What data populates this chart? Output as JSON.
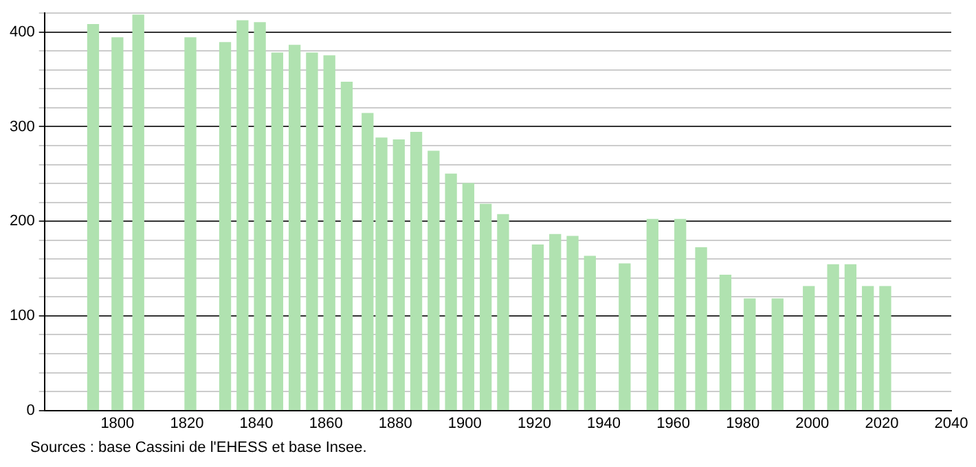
{
  "chart_data": {
    "type": "bar",
    "x": [
      1793,
      1800,
      1806,
      1821,
      1831,
      1836,
      1841,
      1846,
      1851,
      1856,
      1861,
      1866,
      1872,
      1876,
      1881,
      1886,
      1891,
      1896,
      1901,
      1906,
      1911,
      1921,
      1926,
      1931,
      1936,
      1946,
      1954,
      1962,
      1968,
      1975,
      1982,
      1990,
      1999,
      2006,
      2011,
      2016,
      2021
    ],
    "values": [
      408,
      394,
      418,
      394,
      389,
      412,
      410,
      378,
      386,
      378,
      375,
      347,
      314,
      288,
      286,
      294,
      274,
      250,
      240,
      218,
      207,
      175,
      186,
      184,
      163,
      155,
      202,
      202,
      172,
      143,
      118,
      118,
      131,
      154,
      154,
      131,
      131
    ],
    "color": "#b0e2b0",
    "xlim": [
      1779,
      2040
    ],
    "xticks": [
      1800,
      1820,
      1840,
      1860,
      1880,
      1900,
      1920,
      1940,
      1960,
      1980,
      2000,
      2020,
      2040
    ],
    "ylim": [
      0,
      420
    ],
    "yticks": [
      0,
      {
        "value": 20,
        "label": null
      },
      {
        "value": 40,
        "label": null
      },
      {
        "value": 60,
        "label": null
      },
      {
        "value": 80,
        "label": null
      },
      100,
      {
        "value": 120,
        "label": null
      },
      {
        "value": 140,
        "label": null
      },
      {
        "value": 160,
        "label": null
      },
      {
        "value": 180,
        "label": null
      },
      200,
      {
        "value": 220,
        "label": null
      },
      {
        "value": 240,
        "label": null
      },
      {
        "value": 260,
        "label": null
      },
      {
        "value": 280,
        "label": null
      },
      300,
      {
        "value": 320,
        "label": null
      },
      {
        "value": 340,
        "label": null
      },
      {
        "value": 360,
        "label": null
      },
      {
        "value": 380,
        "label": null
      },
      400,
      {
        "value": 420,
        "label": null
      }
    ],
    "grid": "y",
    "annotations": [
      "Sources : base Cassini de l'EHESS et base Insee."
    ]
  }
}
